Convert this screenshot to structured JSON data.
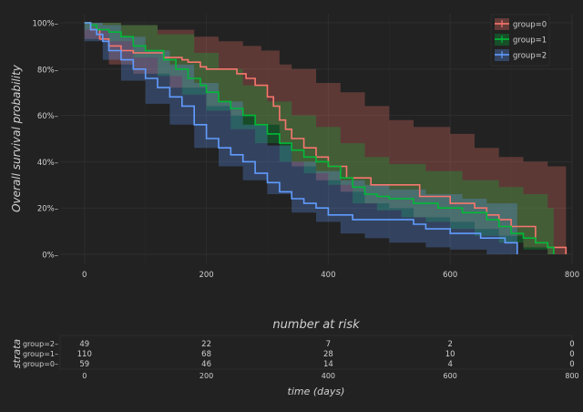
{
  "chart_data": [
    {
      "type": "line",
      "subtype": "kaplan-meier step curves with confidence bands",
      "ylabel": "Overall survival probability",
      "xlabel": "",
      "xlim": [
        -40,
        800
      ],
      "ylim": [
        0,
        100
      ],
      "x_ticks": [
        0,
        200,
        400,
        600,
        800
      ],
      "y_ticks": [
        0,
        20,
        40,
        60,
        80,
        100
      ],
      "y_tick_labels": [
        "0%",
        "20%",
        "40%",
        "60%",
        "80%",
        "100%"
      ],
      "grid": true,
      "legend_position": "top-right",
      "series": [
        {
          "name": "group=0",
          "color": "#f8766d",
          "points": [
            [
              0,
              100
            ],
            [
              10,
              97
            ],
            [
              25,
              93
            ],
            [
              40,
              90
            ],
            [
              60,
              88
            ],
            [
              80,
              87
            ],
            [
              100,
              87
            ],
            [
              130,
              85
            ],
            [
              160,
              84
            ],
            [
              170,
              83
            ],
            [
              190,
              81
            ],
            [
              200,
              80
            ],
            [
              220,
              80
            ],
            [
              250,
              78
            ],
            [
              265,
              76
            ],
            [
              280,
              73
            ],
            [
              300,
              68
            ],
            [
              310,
              64
            ],
            [
              320,
              58
            ],
            [
              330,
              54
            ],
            [
              340,
              50
            ],
            [
              360,
              46
            ],
            [
              380,
              42
            ],
            [
              400,
              38
            ],
            [
              430,
              33
            ],
            [
              470,
              30
            ],
            [
              500,
              30
            ],
            [
              550,
              25
            ],
            [
              600,
              22
            ],
            [
              640,
              20
            ],
            [
              660,
              17
            ],
            [
              680,
              15
            ],
            [
              700,
              12
            ],
            [
              740,
              5
            ],
            [
              760,
              3
            ],
            [
              790,
              0
            ]
          ],
          "upper": [
            [
              0,
              100
            ],
            [
              20,
              100
            ],
            [
              60,
              99
            ],
            [
              120,
              97
            ],
            [
              180,
              94
            ],
            [
              220,
              92
            ],
            [
              260,
              90
            ],
            [
              290,
              88
            ],
            [
              320,
              82
            ],
            [
              340,
              80
            ],
            [
              380,
              74
            ],
            [
              420,
              70
            ],
            [
              460,
              64
            ],
            [
              500,
              58
            ],
            [
              540,
              55
            ],
            [
              600,
              52
            ],
            [
              640,
              46
            ],
            [
              680,
              42
            ],
            [
              720,
              40
            ],
            [
              760,
              38
            ],
            [
              790,
              38
            ]
          ],
          "lower": [
            [
              0,
              93
            ],
            [
              40,
              82
            ],
            [
              80,
              78
            ],
            [
              140,
              72
            ],
            [
              200,
              64
            ],
            [
              240,
              60
            ],
            [
              280,
              56
            ],
            [
              320,
              48
            ],
            [
              340,
              38
            ],
            [
              380,
              32
            ],
            [
              420,
              27
            ],
            [
              460,
              22
            ],
            [
              500,
              20
            ],
            [
              540,
              16
            ],
            [
              600,
              14
            ],
            [
              640,
              11
            ],
            [
              680,
              8
            ],
            [
              720,
              3
            ],
            [
              760,
              0
            ],
            [
              790,
              0
            ]
          ]
        },
        {
          "name": "group=1",
          "color": "#00ba38",
          "points": [
            [
              0,
              100
            ],
            [
              10,
              99
            ],
            [
              20,
              97
            ],
            [
              40,
              96
            ],
            [
              60,
              94
            ],
            [
              80,
              90
            ],
            [
              100,
              88
            ],
            [
              130,
              84
            ],
            [
              150,
              80
            ],
            [
              170,
              76
            ],
            [
              190,
              73
            ],
            [
              200,
              70
            ],
            [
              220,
              66
            ],
            [
              240,
              63
            ],
            [
              260,
              60
            ],
            [
              280,
              56
            ],
            [
              300,
              52
            ],
            [
              320,
              48
            ],
            [
              340,
              45
            ],
            [
              360,
              42
            ],
            [
              380,
              40
            ],
            [
              400,
              38
            ],
            [
              420,
              33
            ],
            [
              440,
              29
            ],
            [
              460,
              26
            ],
            [
              480,
              25
            ],
            [
              500,
              24
            ],
            [
              540,
              22
            ],
            [
              580,
              20
            ],
            [
              620,
              18
            ],
            [
              660,
              15
            ],
            [
              680,
              12
            ],
            [
              700,
              9
            ],
            [
              720,
              7
            ],
            [
              740,
              5
            ],
            [
              760,
              3
            ],
            [
              770,
              0
            ]
          ],
          "upper": [
            [
              0,
              100
            ],
            [
              60,
              99
            ],
            [
              120,
              95
            ],
            [
              180,
              87
            ],
            [
              220,
              80
            ],
            [
              260,
              73
            ],
            [
              300,
              66
            ],
            [
              340,
              60
            ],
            [
              380,
              55
            ],
            [
              420,
              48
            ],
            [
              460,
              42
            ],
            [
              500,
              39
            ],
            [
              560,
              36
            ],
            [
              620,
              32
            ],
            [
              680,
              29
            ],
            [
              720,
              26
            ],
            [
              760,
              20
            ],
            [
              770,
              20
            ]
          ],
          "lower": [
            [
              0,
              97
            ],
            [
              40,
              92
            ],
            [
              80,
              85
            ],
            [
              120,
              77
            ],
            [
              160,
              69
            ],
            [
              200,
              62
            ],
            [
              240,
              54
            ],
            [
              280,
              48
            ],
            [
              320,
              40
            ],
            [
              360,
              35
            ],
            [
              400,
              30
            ],
            [
              440,
              22
            ],
            [
              480,
              19
            ],
            [
              520,
              16
            ],
            [
              560,
              14
            ],
            [
              600,
              11
            ],
            [
              640,
              8
            ],
            [
              680,
              5
            ],
            [
              720,
              2
            ],
            [
              760,
              0
            ],
            [
              770,
              0
            ]
          ]
        },
        {
          "name": "group=2",
          "color": "#619cff",
          "points": [
            [
              0,
              100
            ],
            [
              10,
              97
            ],
            [
              20,
              95
            ],
            [
              30,
              92
            ],
            [
              40,
              88
            ],
            [
              60,
              84
            ],
            [
              80,
              80
            ],
            [
              100,
              76
            ],
            [
              120,
              72
            ],
            [
              140,
              68
            ],
            [
              160,
              64
            ],
            [
              180,
              56
            ],
            [
              200,
              50
            ],
            [
              220,
              46
            ],
            [
              240,
              43
            ],
            [
              260,
              40
            ],
            [
              280,
              35
            ],
            [
              300,
              31
            ],
            [
              320,
              27
            ],
            [
              340,
              24
            ],
            [
              360,
              22
            ],
            [
              380,
              20
            ],
            [
              400,
              17
            ],
            [
              440,
              15
            ],
            [
              500,
              15
            ],
            [
              540,
              13
            ],
            [
              560,
              11
            ],
            [
              600,
              9
            ],
            [
              650,
              7
            ],
            [
              690,
              5
            ],
            [
              710,
              0
            ]
          ],
          "upper": [
            [
              0,
              100
            ],
            [
              30,
              99
            ],
            [
              60,
              94
            ],
            [
              100,
              88
            ],
            [
              140,
              82
            ],
            [
              180,
              74
            ],
            [
              220,
              66
            ],
            [
              260,
              56
            ],
            [
              300,
              47
            ],
            [
              340,
              40
            ],
            [
              380,
              36
            ],
            [
              420,
              32
            ],
            [
              460,
              30
            ],
            [
              500,
              28
            ],
            [
              560,
              26
            ],
            [
              620,
              24
            ],
            [
              660,
              22
            ],
            [
              700,
              22
            ],
            [
              710,
              22
            ]
          ],
          "lower": [
            [
              0,
              92
            ],
            [
              30,
              84
            ],
            [
              60,
              75
            ],
            [
              100,
              65
            ],
            [
              140,
              56
            ],
            [
              180,
              46
            ],
            [
              220,
              38
            ],
            [
              260,
              32
            ],
            [
              300,
              26
            ],
            [
              340,
              18
            ],
            [
              380,
              14
            ],
            [
              420,
              9
            ],
            [
              460,
              7
            ],
            [
              500,
              5
            ],
            [
              560,
              3
            ],
            [
              600,
              2
            ],
            [
              660,
              0
            ],
            [
              710,
              0
            ]
          ]
        }
      ]
    },
    {
      "type": "table",
      "title": "number at risk",
      "ylabel": "strata",
      "xlabel": "time (days)",
      "x_ticks": [
        0,
        200,
        400,
        600,
        800
      ],
      "rows": [
        {
          "label": "group=2",
          "color": "#619cff",
          "values": [
            "49",
            "22",
            "7",
            "2",
            "0"
          ]
        },
        {
          "label": "group=1",
          "color": "#00ba38",
          "values": [
            "110",
            "68",
            "28",
            "10",
            "0"
          ]
        },
        {
          "label": "group=0",
          "color": "#f8766d",
          "values": [
            "59",
            "46",
            "14",
            "4",
            "0"
          ]
        }
      ]
    }
  ],
  "colors": {
    "background": "#222222",
    "panel": "#222222",
    "grid": "#2e2e2e",
    "text": "#d0d0d0",
    "legend_bg": "#222222"
  }
}
